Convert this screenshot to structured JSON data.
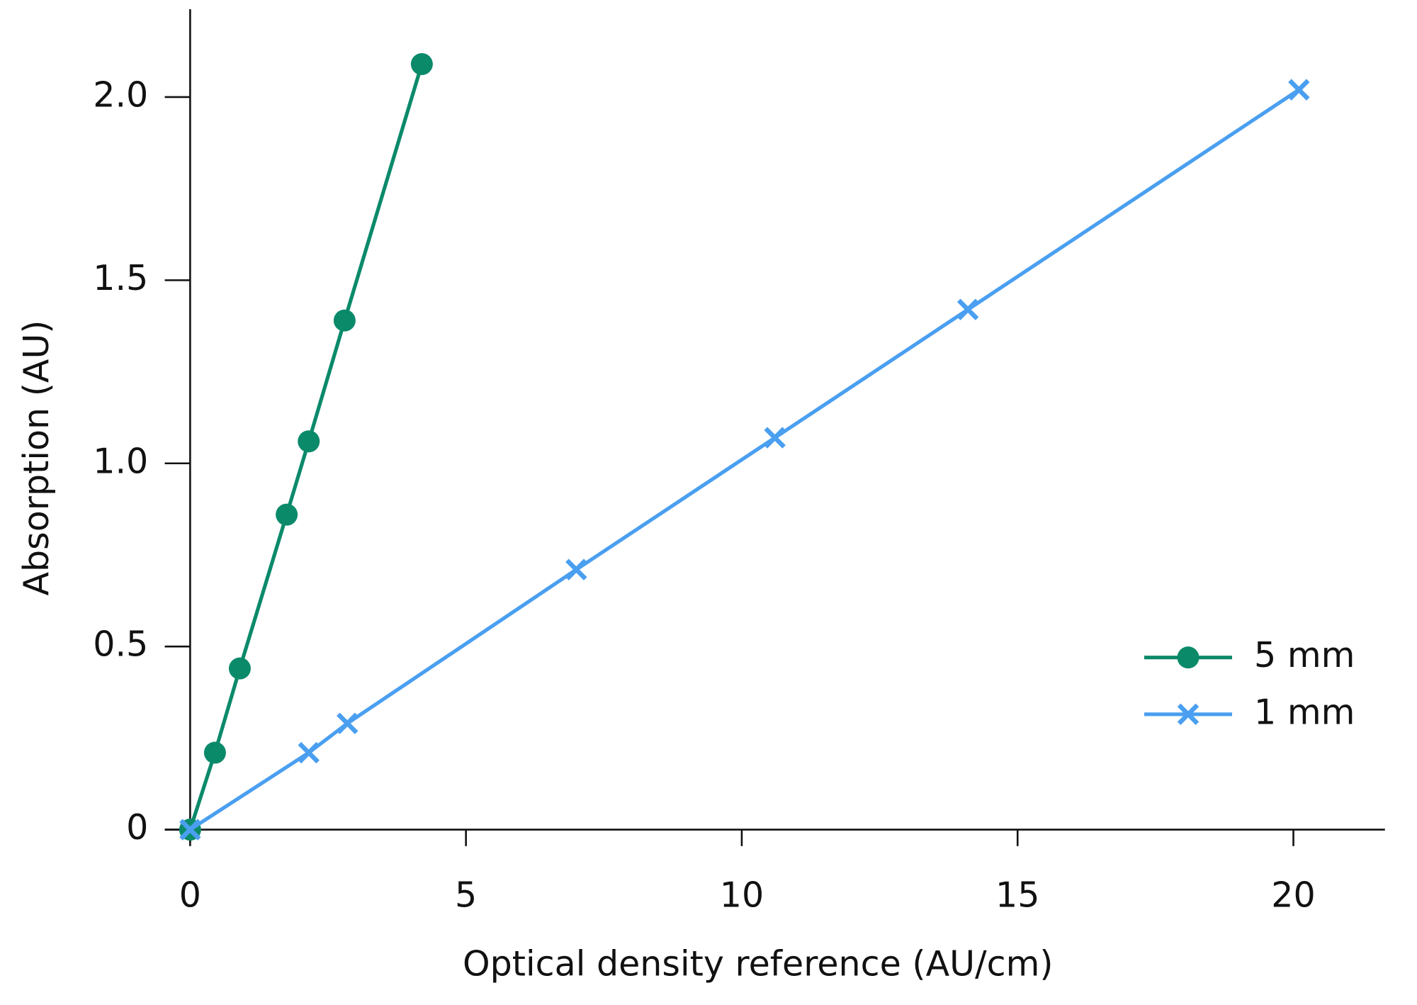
{
  "chart_data": {
    "type": "line",
    "xlabel": "Optical density reference (AU/cm)",
    "ylabel": "Absorption (AU)",
    "series": [
      {
        "name": "5 mm",
        "color": "#0b8a6a",
        "marker": "circle",
        "x": [
          0,
          0.45,
          0.9,
          1.75,
          2.15,
          2.8,
          4.2
        ],
        "values": [
          0,
          0.21,
          0.44,
          0.86,
          1.06,
          1.39,
          2.09
        ]
      },
      {
        "name": "1 mm",
        "color": "#4a9ff0",
        "marker": "x",
        "x": [
          0,
          2.15,
          2.85,
          7.0,
          10.6,
          14.1,
          20.1
        ],
        "values": [
          0,
          0.21,
          0.29,
          0.71,
          1.07,
          1.42,
          2.02
        ]
      }
    ],
    "xlim": [
      -0.46,
      21.66
    ],
    "ylim": [
      -0.035,
      2.24
    ],
    "xticks": [
      0,
      5,
      10,
      15,
      20
    ],
    "yticks": [
      0,
      0.5,
      {
        "value": 1.0,
        "label": "1.0"
      },
      1.5,
      {
        "value": 2.0,
        "label": "2.0"
      }
    ],
    "legend": "lower right"
  }
}
